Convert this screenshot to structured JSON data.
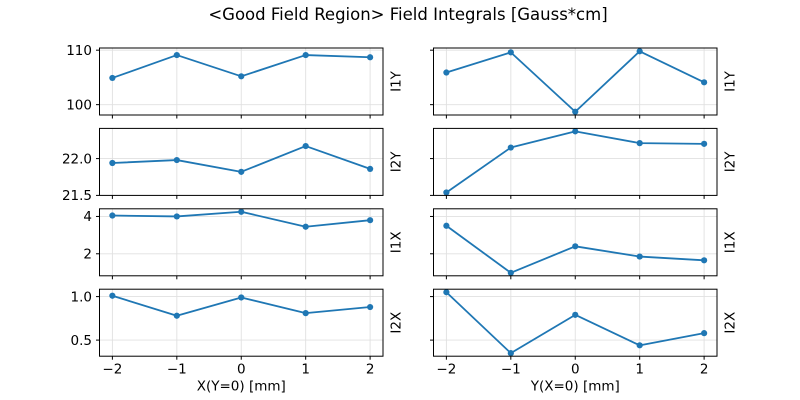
{
  "title": "<Good Field Region> Field Integrals [Gauss*cm]",
  "chart_data": {
    "type": "line",
    "title": "<Good Field Region> Field Integrals [Gauss*cm]",
    "units": "Gauss*cm",
    "grid": true,
    "legend": "none",
    "x": [
      -2,
      -1,
      0,
      1,
      2
    ],
    "xlim": [
      -2.2,
      2.2
    ],
    "xtick_labels": [
      "−2",
      "−1",
      "0",
      "1",
      "2"
    ],
    "columns": [
      {
        "xlabel": "X(Y=0) [mm]"
      },
      {
        "xlabel": "Y(X=0) [mm]"
      }
    ],
    "rows": [
      {
        "ylabel": "I1Y",
        "ylim": [
          98.1,
          110.4
        ],
        "yticks": [
          100,
          110
        ],
        "ytick_labels": [
          "100",
          "110"
        ],
        "series": [
          {
            "name": "I1Y vs X(Y=0)",
            "values": [
              104.9,
              109.1,
              105.2,
              109.1,
              108.7
            ]
          },
          {
            "name": "I1Y vs Y(X=0)",
            "values": [
              105.9,
              109.6,
              98.7,
              109.8,
              104.1
            ]
          }
        ]
      },
      {
        "ylabel": "I2Y",
        "ylim": [
          21.5,
          22.41
        ],
        "yticks": [
          21.5,
          22.0
        ],
        "ytick_labels": [
          "21.5",
          "22.0"
        ],
        "series": [
          {
            "name": "I2Y vs X(Y=0)",
            "values": [
              21.94,
              21.98,
              21.82,
              22.17,
              21.86
            ]
          },
          {
            "name": "I2Y vs Y(X=0)",
            "values": [
              21.54,
              22.15,
              22.37,
              22.21,
              22.2
            ]
          }
        ]
      },
      {
        "ylabel": "I1X",
        "ylim": [
          0.82,
          4.41
        ],
        "yticks": [
          2,
          4
        ],
        "ytick_labels": [
          "2",
          "4"
        ],
        "series": [
          {
            "name": "I1X vs X(Y=0)",
            "values": [
              4.05,
              4.0,
              4.25,
              3.45,
              3.8
            ]
          },
          {
            "name": "I1X vs Y(X=0)",
            "values": [
              3.5,
              0.98,
              2.4,
              1.85,
              1.65
            ]
          }
        ]
      },
      {
        "ylabel": "I2X",
        "ylim": [
          0.315,
          1.085
        ],
        "yticks": [
          0.5,
          1.0
        ],
        "ytick_labels": [
          "0.5",
          "1.0"
        ],
        "series": [
          {
            "name": "I2X vs X(Y=0)",
            "values": [
              1.01,
              0.78,
              0.99,
              0.81,
              0.88
            ]
          },
          {
            "name": "I2X vs Y(X=0)",
            "values": [
              1.05,
              0.35,
              0.79,
              0.44,
              0.58
            ]
          }
        ]
      }
    ],
    "colors": {
      "line": "#1f77b4",
      "grid": "#e0e0e0",
      "spine": "#000000",
      "text": "#000000",
      "background": "#ffffff"
    }
  }
}
